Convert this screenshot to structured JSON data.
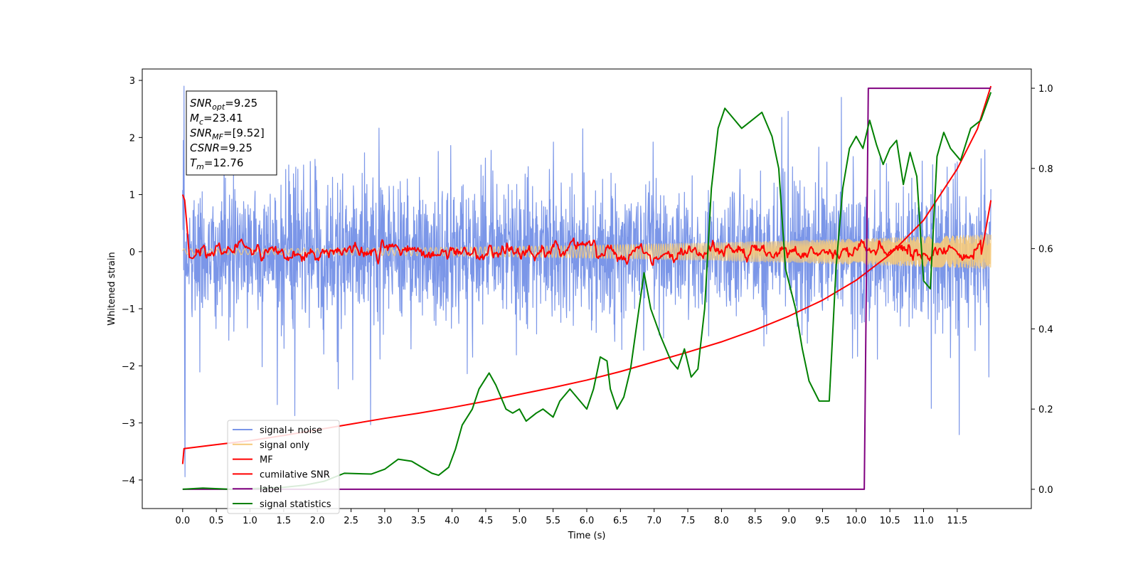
{
  "chart_data": {
    "type": "line",
    "xlabel": "Time (s)",
    "ylabel": "Whitened strain",
    "ylabel_right": "",
    "xlim": [
      -0.6,
      12.6
    ],
    "ylim": [
      -4.5,
      3.2
    ],
    "ylim_right": [
      -0.048,
      1.048
    ],
    "x_ticks": [
      0.0,
      0.5,
      1.0,
      1.5,
      2.0,
      2.5,
      3.0,
      3.5,
      4.0,
      4.5,
      5.0,
      5.5,
      6.0,
      6.5,
      7.0,
      7.5,
      8.0,
      8.5,
      9.0,
      9.5,
      10.0,
      10.5,
      11.0,
      11.5
    ],
    "x_tick_labels": [
      "0.0",
      "0.5",
      "1.0",
      "1.5",
      "2.0",
      "2.5",
      "3.0",
      "3.5",
      "4.0",
      "4.5",
      "5.0",
      "5.5",
      "6.0",
      "6.5",
      "7.0",
      "7.5",
      "8.0",
      "8.5",
      "9.0",
      "9.5",
      "10.0",
      "10.5",
      "11.0",
      "11.5"
    ],
    "y_ticks": [
      3,
      2,
      1,
      0,
      -1,
      -2,
      -3,
      -4
    ],
    "y_tick_labels": [
      "3",
      "2",
      "1",
      "0",
      "−1",
      "−2",
      "−3",
      "−4"
    ],
    "y_right_ticks": [
      1.0,
      0.8,
      0.6,
      0.4,
      0.2,
      0.0
    ],
    "y_right_tick_labels": [
      "1.0",
      "0.8",
      "0.6",
      "0.4",
      "0.2",
      "0.0"
    ],
    "grid": false,
    "legend_position": "lower-left",
    "annotation": {
      "lines": [
        {
          "var": "SNR",
          "sub": "opt",
          "value": "=9.25"
        },
        {
          "var": "M",
          "sub": "c",
          "value": "=23.41"
        },
        {
          "var": "SNR",
          "sub": "MF",
          "value": "=[9.52]"
        },
        {
          "var": "CSNR",
          "sub": "",
          "value": "=9.25"
        },
        {
          "var": "T",
          "sub": "m",
          "value": "=12.76"
        }
      ]
    },
    "series": [
      {
        "name": "signal+ noise",
        "color": "#7b96e8",
        "axis": "left",
        "kind": "noise",
        "x_range": [
          0.0,
          12.0
        ],
        "amplitude_approx": 1.5
      },
      {
        "name": "signal only",
        "color": "#f5c97a",
        "axis": "left",
        "kind": "chirp",
        "x_range": [
          0.0,
          12.0
        ],
        "amplitude_start": 0.05,
        "amplitude_end": 0.3
      },
      {
        "name": "MF",
        "color": "#ff0000",
        "axis": "left",
        "kind": "wiggle",
        "points": [
          [
            0.0,
            1.0
          ],
          [
            0.03,
            0.9
          ],
          [
            0.06,
            0.5
          ],
          [
            0.1,
            -0.1
          ],
          [
            0.15,
            -0.12
          ],
          [
            0.2,
            -0.05
          ]
        ]
      },
      {
        "name": "cumilative SNR",
        "color": "#ff0000",
        "axis": "left",
        "points": [
          [
            0.0,
            -3.72
          ],
          [
            0.02,
            -3.45
          ],
          [
            0.5,
            -3.38
          ],
          [
            1.0,
            -3.31
          ],
          [
            1.5,
            -3.22
          ],
          [
            2.0,
            -3.12
          ],
          [
            2.5,
            -3.02
          ],
          [
            3.0,
            -2.92
          ],
          [
            3.5,
            -2.83
          ],
          [
            4.0,
            -2.73
          ],
          [
            4.5,
            -2.62
          ],
          [
            5.0,
            -2.5
          ],
          [
            5.5,
            -2.38
          ],
          [
            6.0,
            -2.25
          ],
          [
            6.5,
            -2.1
          ],
          [
            7.0,
            -1.93
          ],
          [
            7.5,
            -1.76
          ],
          [
            8.0,
            -1.58
          ],
          [
            8.5,
            -1.37
          ],
          [
            9.0,
            -1.13
          ],
          [
            9.5,
            -0.85
          ],
          [
            10.0,
            -0.5
          ],
          [
            10.5,
            -0.05
          ],
          [
            11.0,
            0.55
          ],
          [
            11.5,
            1.45
          ],
          [
            11.8,
            2.15
          ],
          [
            12.0,
            2.9
          ]
        ]
      },
      {
        "name": "label",
        "color": "#800080",
        "axis": "right",
        "points": [
          [
            0.0,
            0.0
          ],
          [
            10.12,
            0.0
          ],
          [
            10.18,
            1.0
          ],
          [
            12.0,
            1.0
          ]
        ]
      },
      {
        "name": "signal statistics",
        "color": "#008000",
        "axis": "right",
        "points": [
          [
            0.0,
            0.0
          ],
          [
            0.3,
            0.003
          ],
          [
            0.7,
            0.0
          ],
          [
            1.1,
            0.002
          ],
          [
            1.5,
            0.005
          ],
          [
            1.8,
            0.01
          ],
          [
            2.1,
            0.02
          ],
          [
            2.4,
            0.04
          ],
          [
            2.8,
            0.038
          ],
          [
            3.0,
            0.05
          ],
          [
            3.2,
            0.075
          ],
          [
            3.4,
            0.07
          ],
          [
            3.5,
            0.06
          ],
          [
            3.7,
            0.04
          ],
          [
            3.8,
            0.035
          ],
          [
            3.95,
            0.055
          ],
          [
            4.05,
            0.1
          ],
          [
            4.15,
            0.16
          ],
          [
            4.3,
            0.2
          ],
          [
            4.4,
            0.25
          ],
          [
            4.55,
            0.29
          ],
          [
            4.65,
            0.26
          ],
          [
            4.8,
            0.2
          ],
          [
            4.9,
            0.19
          ],
          [
            5.0,
            0.2
          ],
          [
            5.1,
            0.17
          ],
          [
            5.25,
            0.19
          ],
          [
            5.35,
            0.2
          ],
          [
            5.5,
            0.18
          ],
          [
            5.6,
            0.22
          ],
          [
            5.75,
            0.25
          ],
          [
            5.9,
            0.22
          ],
          [
            6.0,
            0.2
          ],
          [
            6.1,
            0.25
          ],
          [
            6.2,
            0.33
          ],
          [
            6.3,
            0.32
          ],
          [
            6.35,
            0.25
          ],
          [
            6.45,
            0.2
          ],
          [
            6.55,
            0.23
          ],
          [
            6.65,
            0.3
          ],
          [
            6.75,
            0.42
          ],
          [
            6.85,
            0.54
          ],
          [
            6.95,
            0.45
          ],
          [
            7.1,
            0.38
          ],
          [
            7.25,
            0.32
          ],
          [
            7.35,
            0.3
          ],
          [
            7.45,
            0.35
          ],
          [
            7.55,
            0.28
          ],
          [
            7.65,
            0.3
          ],
          [
            7.75,
            0.45
          ],
          [
            7.85,
            0.75
          ],
          [
            7.95,
            0.9
          ],
          [
            8.05,
            0.95
          ],
          [
            8.15,
            0.93
          ],
          [
            8.3,
            0.9
          ],
          [
            8.45,
            0.92
          ],
          [
            8.6,
            0.94
          ],
          [
            8.75,
            0.88
          ],
          [
            8.85,
            0.8
          ],
          [
            8.95,
            0.55
          ],
          [
            9.1,
            0.45
          ],
          [
            9.2,
            0.35
          ],
          [
            9.3,
            0.27
          ],
          [
            9.45,
            0.22
          ],
          [
            9.6,
            0.22
          ],
          [
            9.7,
            0.55
          ],
          [
            9.8,
            0.75
          ],
          [
            9.9,
            0.85
          ],
          [
            10.0,
            0.88
          ],
          [
            10.1,
            0.85
          ],
          [
            10.2,
            0.92
          ],
          [
            10.3,
            0.86
          ],
          [
            10.4,
            0.81
          ],
          [
            10.5,
            0.85
          ],
          [
            10.6,
            0.87
          ],
          [
            10.7,
            0.76
          ],
          [
            10.8,
            0.84
          ],
          [
            10.9,
            0.78
          ],
          [
            11.0,
            0.52
          ],
          [
            11.1,
            0.5
          ],
          [
            11.2,
            0.83
          ],
          [
            11.3,
            0.89
          ],
          [
            11.4,
            0.85
          ],
          [
            11.55,
            0.82
          ],
          [
            11.7,
            0.9
          ],
          [
            11.85,
            0.92
          ],
          [
            12.0,
            0.99
          ]
        ]
      }
    ]
  }
}
